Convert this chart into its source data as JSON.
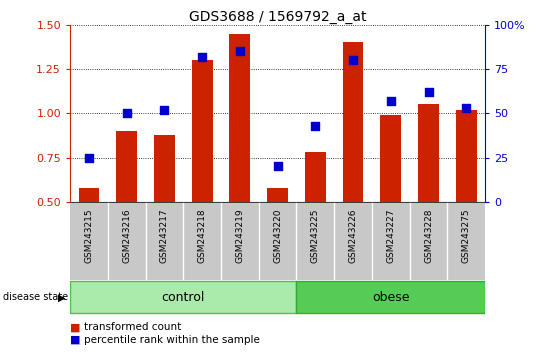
{
  "title": "GDS3688 / 1569792_a_at",
  "samples": [
    "GSM243215",
    "GSM243216",
    "GSM243217",
    "GSM243218",
    "GSM243219",
    "GSM243220",
    "GSM243225",
    "GSM243226",
    "GSM243227",
    "GSM243228",
    "GSM243275"
  ],
  "transformed_count": [
    0.58,
    0.9,
    0.88,
    1.3,
    1.45,
    0.58,
    0.78,
    1.4,
    0.99,
    1.05,
    1.02
  ],
  "percentile_rank": [
    25,
    50,
    52,
    82,
    85,
    20,
    43,
    80,
    57,
    62,
    53
  ],
  "bar_color": "#cc2200",
  "dot_color": "#0000cc",
  "ylim_left": [
    0.5,
    1.5
  ],
  "ylim_right": [
    0,
    100
  ],
  "yticks_left": [
    0.5,
    0.75,
    1.0,
    1.25,
    1.5
  ],
  "yticks_right": [
    0,
    25,
    50,
    75,
    100
  ],
  "ytick_labels_right": [
    "0",
    "25",
    "50",
    "75",
    "100%"
  ],
  "control_indices": [
    0,
    1,
    2,
    3,
    4,
    5
  ],
  "obese_indices": [
    6,
    7,
    8,
    9,
    10
  ],
  "control_label": "control",
  "obese_label": "obese",
  "disease_state_label": "disease state",
  "legend_bar_label": "transformed count",
  "legend_dot_label": "percentile rank within the sample",
  "left_axis_color": "#cc2200",
  "right_axis_color": "#0000cc",
  "title_fontsize": 10,
  "tick_fontsize": 8,
  "bar_width": 0.55,
  "dot_size": 30,
  "label_area_color": "#c8c8c8",
  "label_sep_color": "#ffffff",
  "control_color": "#aaeaaa",
  "obese_color": "#55cc55",
  "control_edge_color": "#55bb55",
  "obese_edge_color": "#33aa33"
}
